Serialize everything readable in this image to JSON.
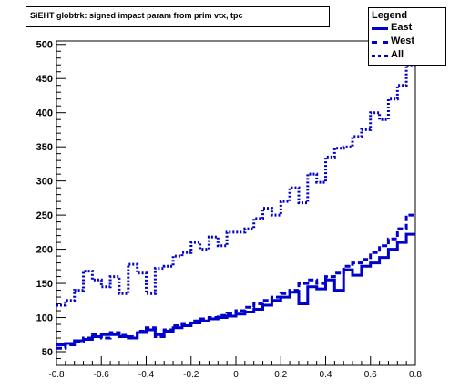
{
  "chart_data": {
    "type": "line",
    "title": "SiEHT globtrk: signed impact param from prim vtx, tpc",
    "xlabel": "",
    "ylabel": "",
    "xlim": [
      -0.8,
      0.8
    ],
    "ylim": [
      30,
      505
    ],
    "x_ticks": [
      "-0.8",
      "-0.6",
      "-0.4",
      "-0.2",
      "0",
      "0.2",
      "0.4",
      "0.6",
      "0.8"
    ],
    "y_ticks": [
      "50",
      "100",
      "150",
      "200",
      "250",
      "300",
      "350",
      "400",
      "450",
      "500"
    ],
    "legend": {
      "heading": "Legend",
      "position": "top-right",
      "entries": [
        "East",
        "West",
        "All"
      ]
    },
    "color": "#0000cc",
    "bin_edges": [
      -0.8,
      -0.76,
      -0.72,
      -0.68,
      -0.64,
      -0.6,
      -0.56,
      -0.52,
      -0.48,
      -0.44,
      -0.4,
      -0.36,
      -0.32,
      -0.28,
      -0.24,
      -0.2,
      -0.16,
      -0.12,
      -0.08,
      -0.04,
      0.0,
      0.04,
      0.08,
      0.12,
      0.16,
      0.2,
      0.24,
      0.28,
      0.32,
      0.36,
      0.4,
      0.44,
      0.48,
      0.52,
      0.56,
      0.6,
      0.64,
      0.68,
      0.72,
      0.76,
      0.8
    ],
    "series": [
      {
        "name": "East",
        "style": "solid",
        "values": [
          60,
          62,
          66,
          68,
          72,
          75,
          75,
          72,
          70,
          78,
          82,
          75,
          80,
          85,
          88,
          92,
          95,
          98,
          100,
          102,
          105,
          108,
          112,
          118,
          125,
          130,
          137,
          120,
          145,
          142,
          155,
          140,
          170,
          162,
          175,
          180,
          188,
          200,
          210,
          222
        ]
      },
      {
        "name": "West",
        "style": "dashed",
        "values": [
          55,
          60,
          64,
          70,
          75,
          70,
          78,
          74,
          72,
          80,
          85,
          72,
          82,
          88,
          90,
          95,
          98,
          100,
          103,
          106,
          110,
          115,
          120,
          125,
          130,
          135,
          140,
          150,
          155,
          150,
          160,
          165,
          175,
          180,
          185,
          195,
          205,
          215,
          230,
          250
        ]
      },
      {
        "name": "All",
        "style": "dotted",
        "values": [
          118,
          125,
          140,
          168,
          155,
          145,
          160,
          135,
          178,
          165,
          135,
          172,
          175,
          190,
          195,
          210,
          200,
          218,
          205,
          225,
          225,
          230,
          245,
          260,
          250,
          270,
          290,
          268,
          310,
          298,
          335,
          348,
          350,
          365,
          375,
          400,
          390,
          420,
          440,
          470
        ]
      }
    ]
  }
}
